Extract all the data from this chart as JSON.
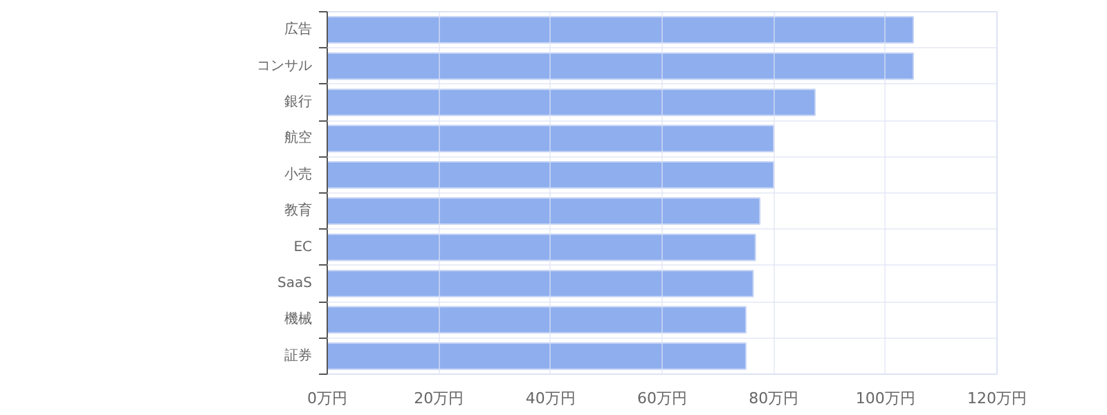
{
  "chart_data": {
    "type": "bar",
    "orientation": "horizontal",
    "categories": [
      "広告",
      "コンサル",
      "銀行",
      "航空",
      "小売",
      "教育",
      "EC",
      "SaaS",
      "機械",
      "証券"
    ],
    "values": [
      105,
      105,
      87.4,
      80,
      80,
      77.5,
      76.7,
      76.3,
      75,
      75
    ],
    "color": "#8eaeee",
    "xlim": [
      0,
      120
    ],
    "xticks": [
      {
        "value": 0,
        "label": "0万円"
      },
      {
        "value": 20,
        "label": "20万円"
      },
      {
        "value": 40,
        "label": "40万円"
      },
      {
        "value": 60,
        "label": "60万円"
      },
      {
        "value": 80,
        "label": "80万円"
      },
      {
        "value": 100,
        "label": "100万円"
      },
      {
        "value": 120,
        "label": "120万円"
      }
    ],
    "grid": true
  }
}
